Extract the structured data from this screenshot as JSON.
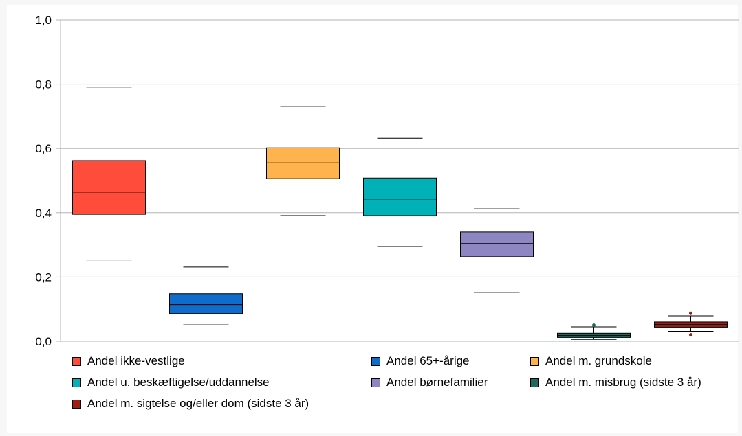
{
  "chart_data": {
    "type": "boxplot",
    "ylim": [
      0,
      1.0
    ],
    "yticks": [
      "0,0",
      "0,2",
      "0,4",
      "0,6",
      "0,8",
      "1,0"
    ],
    "ytick_values": [
      0,
      0.2,
      0.4,
      0.6,
      0.8,
      1.0
    ],
    "grid": true,
    "legend_position": "bottom",
    "series": [
      {
        "name": "Andel ikke-vestlige",
        "color": "#ff4c3b",
        "min": 0.253,
        "q1": 0.395,
        "median": 0.464,
        "q3": 0.562,
        "max": 0.791,
        "outliers": []
      },
      {
        "name": "Andel 65+-årige",
        "color": "#0f6ccb",
        "min": 0.051,
        "q1": 0.086,
        "median": 0.114,
        "q3": 0.148,
        "max": 0.231,
        "outliers": []
      },
      {
        "name": "Andel m. grundskole",
        "color": "#ffb34c",
        "min": 0.391,
        "q1": 0.506,
        "median": 0.555,
        "q3": 0.602,
        "max": 0.731,
        "outliers": []
      },
      {
        "name": "Andel u. beskæftigelse/uddannelse",
        "color": "#00b2b8",
        "min": 0.295,
        "q1": 0.391,
        "median": 0.44,
        "q3": 0.508,
        "max": 0.632,
        "outliers": []
      },
      {
        "name": "Andel børnefamilier",
        "color": "#8e86c2",
        "min": 0.152,
        "q1": 0.263,
        "median": 0.304,
        "q3": 0.34,
        "max": 0.412,
        "outliers": []
      },
      {
        "name": "Andel m. misbrug (sidste 3 år)",
        "color": "#1c6b5f",
        "min": 0.006,
        "q1": 0.012,
        "median": 0.018,
        "q3": 0.025,
        "max": 0.045,
        "outliers": [
          0.05
        ]
      },
      {
        "name": "Andel m. sigtelse og/eller dom (sidste 3 år)",
        "color": "#a01d13",
        "min": 0.031,
        "q1": 0.044,
        "median": 0.052,
        "q3": 0.06,
        "max": 0.079,
        "outliers": [
          0.087,
          0.02
        ]
      }
    ]
  }
}
